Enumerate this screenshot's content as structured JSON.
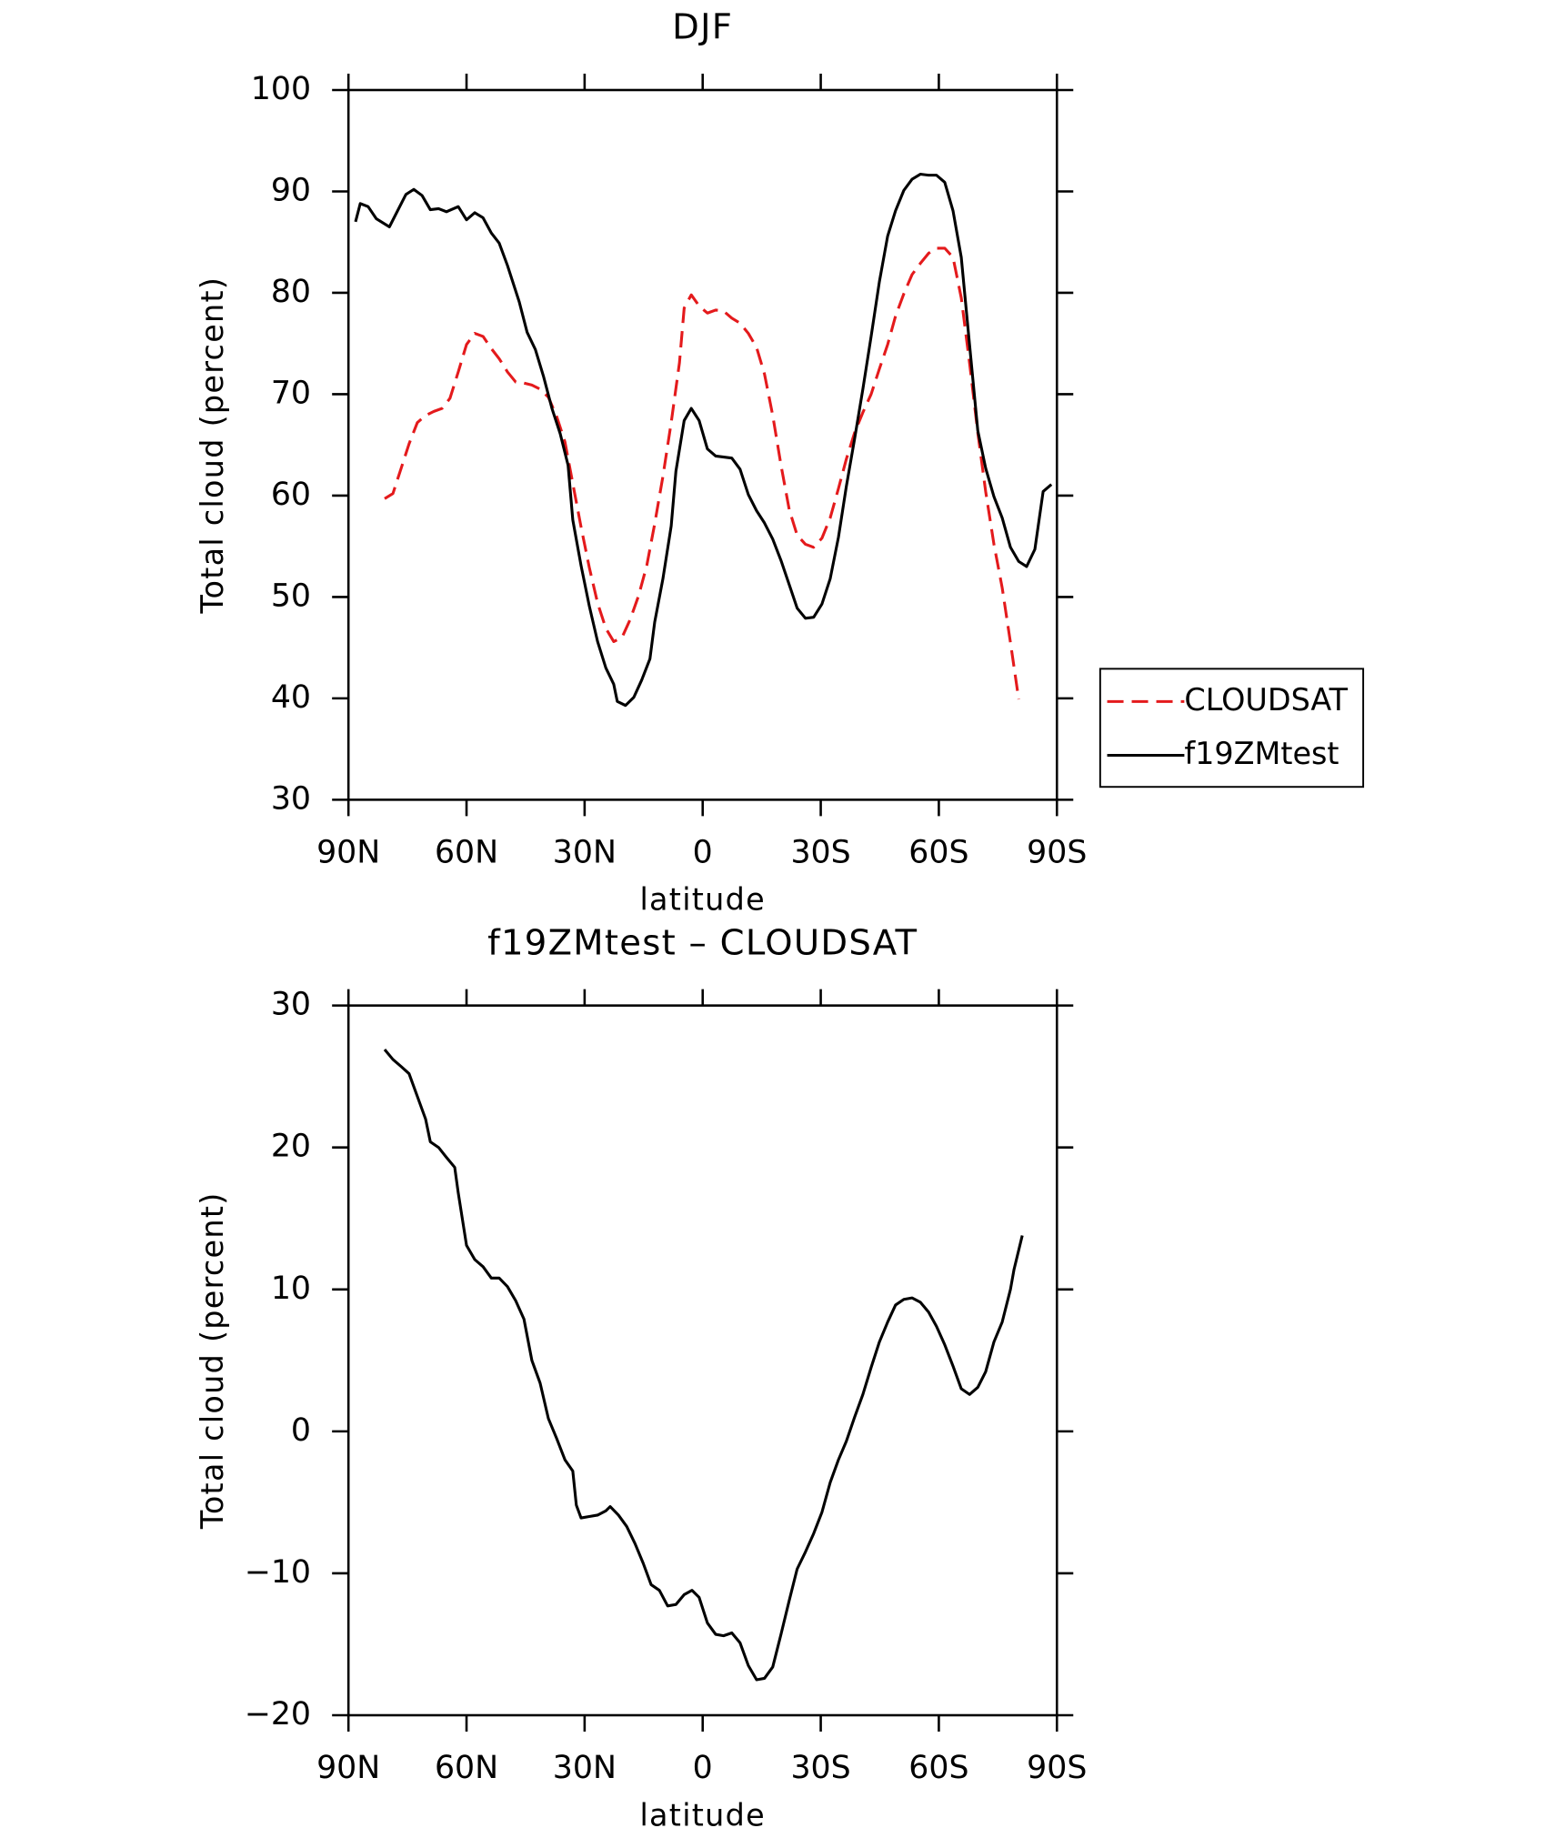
{
  "chart_data": [
    {
      "type": "line",
      "title": "DJF",
      "xlabel": "latitude",
      "ylabel": "Total cloud (percent)",
      "xlim": [
        90,
        -90
      ],
      "xticks": [
        {
          "value": 90,
          "label": "90N"
        },
        {
          "value": 60,
          "label": "60N"
        },
        {
          "value": 30,
          "label": "30N"
        },
        0,
        {
          "value": -30,
          "label": "30S"
        },
        {
          "value": -60,
          "label": "60S"
        },
        {
          "value": -90,
          "label": "90S"
        }
      ],
      "ylim": [
        30,
        100
      ],
      "yticks": [
        30,
        40,
        50,
        60,
        70,
        80,
        90,
        100
      ],
      "legend": "right",
      "series": [
        {
          "name": "CLOUDSAT",
          "color": "#e41a1c",
          "dash": true,
          "x": [
            80.8,
            78.7,
            76.6,
            74.6,
            72.5,
            70.4,
            68.3,
            66.2,
            64.2,
            62.1,
            60,
            57.9,
            55.8,
            53.7,
            51.7,
            49.6,
            47.5,
            45.4,
            43.4,
            41.3,
            39.2,
            37.1,
            35,
            33,
            30.9,
            28.8,
            26.7,
            24.6,
            22.6,
            20.5,
            18.4,
            16.3,
            14.2,
            12.2,
            10.1,
            8,
            5.9,
            4.7,
            2.9,
            0.9,
            -1.2,
            -3.3,
            -5.3,
            -7.4,
            -9.5,
            -11.6,
            -13.7,
            -15.7,
            -17.8,
            -19.9,
            -22,
            -24,
            -26.1,
            -28.2,
            -30.3,
            -32.4,
            -34.5,
            -36.5,
            -38.6,
            -40.7,
            -42.8,
            -44.9,
            -47,
            -49,
            -51.1,
            -53.2,
            -55.3,
            -57.4,
            -59.4,
            -61.5,
            -63.6,
            -65.7,
            -67.8,
            -69.9,
            -71.9,
            -74,
            -76.1,
            -78.2,
            -80.3
          ],
          "values": [
            59.7,
            60.2,
            62.7,
            65.1,
            67.2,
            67.9,
            68.3,
            68.6,
            69.6,
            72.2,
            74.9,
            76.0,
            75.7,
            74.5,
            73.5,
            72.2,
            71.2,
            71.1,
            70.9,
            70.5,
            69.7,
            67.8,
            65.3,
            61.2,
            56.9,
            52.9,
            49.4,
            46.9,
            45.6,
            46.0,
            47.8,
            50.1,
            53.1,
            57.2,
            61.9,
            67.2,
            73.1,
            78.5,
            79.8,
            78.7,
            78.0,
            78.3,
            78.2,
            77.5,
            77.0,
            76.0,
            74.6,
            72.0,
            67.9,
            63.0,
            58.6,
            56.1,
            55.2,
            54.9,
            55.8,
            57.8,
            60.7,
            63.6,
            66.2,
            68.2,
            70.0,
            72.5,
            74.9,
            77.7,
            79.9,
            81.8,
            82.9,
            83.9,
            84.4,
            84.4,
            83.5,
            79.5,
            73.1,
            66.2,
            60.4,
            55.2,
            50.9,
            45.5,
            39.9
          ]
        },
        {
          "name": "f19ZMtest",
          "color": "#000000",
          "dash": false,
          "x": [
            88.2,
            87,
            85,
            82.9,
            79.6,
            75.4,
            73.4,
            71.3,
            69.2,
            67.1,
            65.1,
            62.1,
            60,
            57.9,
            55.8,
            53.7,
            51.7,
            49.6,
            46.6,
            44.6,
            42.5,
            40.4,
            38.3,
            36.2,
            34.2,
            33,
            30.9,
            28.8,
            26.7,
            24.6,
            22.6,
            21.7,
            19.6,
            17.5,
            15.5,
            13.4,
            12.2,
            10.1,
            8,
            6.8,
            4.7,
            2.9,
            0.9,
            -1.2,
            -3.3,
            -7.4,
            -9.5,
            -11.6,
            -13.7,
            -15.7,
            -17.8,
            -19.9,
            -22,
            -24,
            -26.1,
            -28.2,
            -30.3,
            -32.4,
            -34.5,
            -36.5,
            -38.6,
            -40.7,
            -42.8,
            -44.9,
            -47,
            -49,
            -51.1,
            -53.2,
            -55.3,
            -57.4,
            -59.4,
            -61.5,
            -63.6,
            -65.7,
            -67.8,
            -69.9,
            -71.9,
            -74,
            -76.1,
            -78.2,
            -80.3,
            -82.3,
            -84.4,
            -86.5,
            -88.6
          ],
          "values": [
            87.0,
            88.8,
            88.5,
            87.3,
            86.5,
            89.7,
            90.2,
            89.6,
            88.2,
            88.3,
            88.0,
            88.5,
            87.2,
            87.9,
            87.4,
            85.9,
            84.9,
            82.7,
            79.1,
            76.1,
            74.4,
            71.7,
            68.6,
            66.1,
            63.0,
            57.6,
            53.1,
            49.1,
            45.6,
            43.0,
            41.4,
            39.7,
            39.3,
            40.1,
            41.8,
            43.9,
            47.5,
            51.8,
            57.0,
            62.4,
            67.4,
            68.6,
            67.4,
            64.6,
            63.9,
            63.7,
            62.6,
            60.1,
            58.5,
            57.3,
            55.7,
            53.6,
            51.2,
            48.9,
            47.9,
            48.0,
            49.3,
            51.8,
            55.9,
            60.9,
            65.6,
            70.5,
            75.7,
            81.1,
            85.6,
            88.1,
            90.1,
            91.2,
            91.7,
            91.6,
            91.6,
            90.9,
            88.1,
            83.5,
            74.9,
            66.4,
            62.7,
            59.9,
            57.8,
            54.9,
            53.5,
            53.0,
            54.7,
            60.4,
            61.1
          ]
        }
      ]
    },
    {
      "type": "line",
      "title": "f19ZMtest – CLOUDSAT",
      "xlabel": "latitude",
      "ylabel": "Total cloud (percent)",
      "xlim": [
        90,
        -90
      ],
      "xticks": [
        {
          "value": 90,
          "label": "90N"
        },
        {
          "value": 60,
          "label": "60N"
        },
        {
          "value": 30,
          "label": "30N"
        },
        0,
        {
          "value": -30,
          "label": "30S"
        },
        {
          "value": -60,
          "label": "60S"
        },
        {
          "value": -90,
          "label": "90S"
        }
      ],
      "ylim": [
        -20,
        30
      ],
      "yticks": [
        {
          "value": -20,
          "label": "−20"
        },
        {
          "value": -10,
          "label": "−10"
        },
        0,
        10,
        20,
        30
      ],
      "series": [
        {
          "color": "#000000",
          "dash": false,
          "x": [
            80.8,
            78.7,
            76.6,
            74.6,
            72.5,
            70.4,
            69.2,
            67.1,
            65.1,
            63,
            62.1,
            60,
            57.9,
            55.8,
            53.7,
            51.7,
            49.6,
            47.5,
            45.4,
            43.4,
            41.3,
            39.2,
            37.1,
            35,
            33,
            32.1,
            30.9,
            28.8,
            26.7,
            24.6,
            23.5,
            21.4,
            19.3,
            17.2,
            15.1,
            13.1,
            11,
            8.9,
            6.8,
            4.7,
            2.7,
            0.9,
            -1.2,
            -3.3,
            -5.3,
            -7.4,
            -9.5,
            -11.6,
            -13.7,
            -15.7,
            -17.8,
            -19.9,
            -22,
            -24,
            -26.1,
            -28.2,
            -30.3,
            -32.4,
            -34.5,
            -36.5,
            -38.6,
            -40.7,
            -42.8,
            -44.9,
            -47,
            -49,
            -51.1,
            -53.2,
            -55.3,
            -57.4,
            -59.4,
            -61.5,
            -63.6,
            -65.7,
            -67.8,
            -69.9,
            -71.9,
            -74,
            -76.1,
            -78.2,
            -79.1,
            -81.2
          ],
          "values": [
            26.9,
            26.2,
            25.7,
            25.2,
            23.6,
            22.0,
            20.4,
            20.0,
            19.3,
            18.6,
            16.8,
            13.1,
            12.1,
            11.6,
            10.8,
            10.8,
            10.2,
            9.2,
            7.9,
            5.0,
            3.4,
            0.9,
            -0.5,
            -2.0,
            -2.8,
            -5.2,
            -6.1,
            -6.0,
            -5.9,
            -5.6,
            -5.3,
            -5.9,
            -6.7,
            -7.9,
            -9.3,
            -10.8,
            -11.2,
            -12.3,
            -12.2,
            -11.5,
            -11.2,
            -11.7,
            -13.5,
            -14.3,
            -14.4,
            -14.2,
            -14.9,
            -16.5,
            -17.5,
            -17.4,
            -16.6,
            -14.3,
            -11.9,
            -9.7,
            -8.5,
            -7.2,
            -5.7,
            -3.6,
            -2.0,
            -0.7,
            1.0,
            2.6,
            4.5,
            6.3,
            7.7,
            8.9,
            9.3,
            9.4,
            9.1,
            8.4,
            7.4,
            6.1,
            4.6,
            3.0,
            2.6,
            3.1,
            4.2,
            6.3,
            7.7,
            10.0,
            11.4,
            13.8
          ]
        }
      ]
    }
  ]
}
